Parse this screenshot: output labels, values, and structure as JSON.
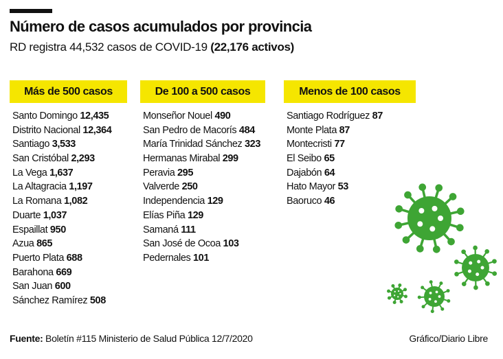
{
  "title": "Número de casos acumulados por provincia",
  "subtitle": {
    "text": "RD registra 44,532 casos de COVID-19",
    "bold": "(22,176 activos)"
  },
  "groups": [
    {
      "label": "Más de 500 casos",
      "items": [
        {
          "name": "Santo Domingo",
          "value": "12,435"
        },
        {
          "name": "Distrito Nacional",
          "value": "12,364"
        },
        {
          "name": "Santiago",
          "value": "3,533"
        },
        {
          "name": "San Cristóbal",
          "value": "2,293"
        },
        {
          "name": "La Vega",
          "value": "1,637"
        },
        {
          "name": "La Altagracia",
          "value": "1,197"
        },
        {
          "name": "La Romana",
          "value": "1,082"
        },
        {
          "name": "Duarte",
          "value": "1,037"
        },
        {
          "name": "Espaillat",
          "value": "950"
        },
        {
          "name": "Azua",
          "value": "865"
        },
        {
          "name": "Puerto Plata",
          "value": "688"
        },
        {
          "name": "Barahona",
          "value": "669"
        },
        {
          "name": "San Juan",
          "value": "600"
        },
        {
          "name": "Sánchez Ramírez",
          "value": "508"
        }
      ]
    },
    {
      "label": "De 100 a 500 casos",
      "items": [
        {
          "name": "Monseñor Nouel",
          "value": "490"
        },
        {
          "name": "San Pedro de Macorís",
          "value": "484"
        },
        {
          "name": "María Trinidad Sánchez",
          "value": "323"
        },
        {
          "name": "Hermanas Mirabal",
          "value": "299"
        },
        {
          "name": "Peravia",
          "value": "295"
        },
        {
          "name": "Valverde",
          "value": "250"
        },
        {
          "name": "Independencia",
          "value": "129"
        },
        {
          "name": "Elías Piña",
          "value": "129"
        },
        {
          "name": "Samaná",
          "value": "111"
        },
        {
          "name": "San José de Ocoa",
          "value": "103"
        },
        {
          "name": "Pedernales",
          "value": "101"
        }
      ]
    },
    {
      "label": "Menos de 100 casos",
      "items": [
        {
          "name": "Santiago Rodríguez",
          "value": "87"
        },
        {
          "name": "Monte Plata",
          "value": "87"
        },
        {
          "name": "Montecristi",
          "value": "77"
        },
        {
          "name": "El Seibo",
          "value": "65"
        },
        {
          "name": "Dajabón",
          "value": "64"
        },
        {
          "name": "Hato Mayor",
          "value": "53"
        },
        {
          "name": "Baoruco",
          "value": "46"
        }
      ]
    }
  ],
  "footer": {
    "source_label": "Fuente:",
    "source_text": "Boletín #115 Ministerio de Salud Pública 12/7/2020",
    "credit": "Gráfico/Diario Libre"
  },
  "colors": {
    "header_bg": "#f5e600",
    "virus": "#3ea534"
  },
  "icons": [
    "virus-icon"
  ]
}
